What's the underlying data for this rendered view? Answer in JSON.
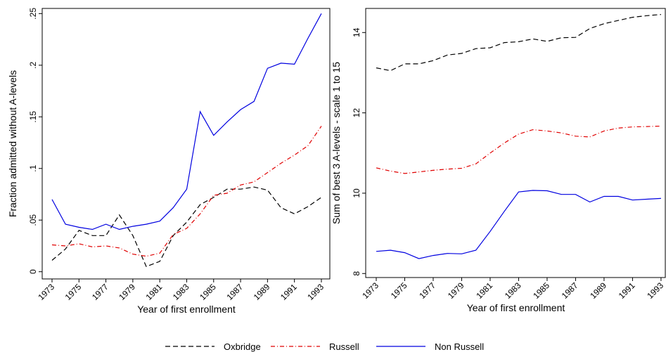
{
  "chart_data": [
    {
      "type": "line",
      "xlabel": "Year of first enrollment",
      "ylabel": "Fraction admitted without A-levels",
      "xlim": [
        1972.27,
        1993.68
      ],
      "ylim": [
        -0.007,
        0.255
      ],
      "xticks": [
        1973,
        1975,
        1977,
        1979,
        1981,
        1983,
        1985,
        1987,
        1989,
        1991,
        1993
      ],
      "yticks": [
        0,
        {
          "value": 0.05,
          "label": ".05"
        },
        {
          "value": 0.1,
          "label": ".1"
        },
        {
          "value": 0.15,
          "label": ".15"
        },
        {
          "value": 0.2,
          "label": ".2"
        },
        {
          "value": 0.25,
          "label": ".25"
        }
      ],
      "x": [
        1973,
        1974,
        1975,
        1976,
        1977,
        1978,
        1979,
        1980,
        1981,
        1982,
        1983,
        1984,
        1985,
        1986,
        1987,
        1988,
        1989,
        1990,
        1991,
        1992,
        1993
      ],
      "series": [
        {
          "name": "Oxbridge",
          "color": "#000000",
          "dash": "dashed",
          "values": [
            0.011,
            0.022,
            0.04,
            0.035,
            0.035,
            0.055,
            0.035,
            0.005,
            0.01,
            0.035,
            0.048,
            0.065,
            0.072,
            0.08,
            0.08,
            0.082,
            0.079,
            0.062,
            0.056,
            0.063,
            0.072
          ]
        },
        {
          "name": "Russell",
          "color": "#e00000",
          "dash": "dashdot",
          "values": [
            0.026,
            0.025,
            0.027,
            0.024,
            0.025,
            0.023,
            0.017,
            0.015,
            0.018,
            0.036,
            0.042,
            0.056,
            0.074,
            0.076,
            0.084,
            0.087,
            0.096,
            0.105,
            0.113,
            0.122,
            0.141
          ]
        },
        {
          "name": "Non Russell",
          "color": "#0000e0",
          "dash": "solid",
          "values": [
            0.07,
            0.046,
            0.043,
            0.041,
            0.046,
            0.041,
            0.044,
            0.046,
            0.049,
            0.062,
            0.08,
            0.155,
            0.132,
            0.145,
            0.157,
            0.165,
            0.197,
            0.202,
            0.201,
            0.226,
            0.25
          ]
        }
      ]
    },
    {
      "type": "line",
      "xlabel": "Year of first enrollment",
      "ylabel": "Sum of best 3 A-levels - scale 1 to 15",
      "xlim": [
        1972.26,
        1993.35
      ],
      "ylim": [
        7.9,
        14.6
      ],
      "xticks": [
        1973,
        1975,
        1977,
        1979,
        1981,
        1983,
        1985,
        1987,
        1989,
        1991,
        1993
      ],
      "yticks": [
        8,
        10,
        12,
        14
      ],
      "x": [
        1973,
        1974,
        1975,
        1976,
        1977,
        1978,
        1979,
        1980,
        1981,
        1982,
        1983,
        1984,
        1985,
        1986,
        1987,
        1988,
        1989,
        1990,
        1991,
        1992,
        1993
      ],
      "series": [
        {
          "color": "#000000",
          "dash": "dashed",
          "values": [
            13.12,
            13.05,
            13.22,
            13.22,
            13.3,
            13.44,
            13.48,
            13.6,
            13.62,
            13.75,
            13.77,
            13.84,
            13.78,
            13.87,
            13.88,
            14.1,
            14.22,
            14.3,
            14.38,
            14.42,
            14.45
          ]
        },
        {
          "color": "#e00000",
          "dash": "dashdot",
          "values": [
            10.63,
            10.55,
            10.49,
            10.53,
            10.57,
            10.6,
            10.62,
            10.73,
            11.0,
            11.25,
            11.47,
            11.58,
            11.55,
            11.5,
            11.42,
            11.4,
            11.55,
            11.62,
            11.65,
            11.66,
            11.67
          ]
        },
        {
          "color": "#0000e0",
          "dash": "solid",
          "values": [
            8.55,
            8.58,
            8.52,
            8.37,
            8.45,
            8.5,
            8.49,
            8.58,
            9.05,
            9.55,
            10.03,
            10.07,
            10.06,
            9.97,
            9.97,
            9.78,
            9.92,
            9.92,
            9.83,
            9.85,
            9.87
          ]
        }
      ]
    }
  ]
}
